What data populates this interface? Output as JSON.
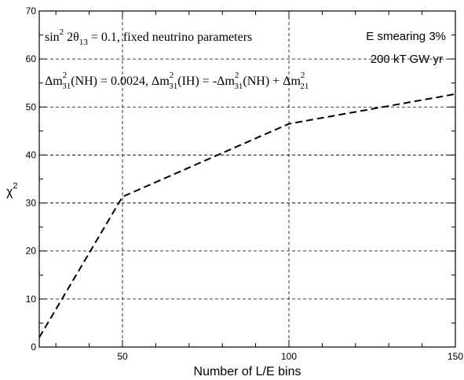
{
  "chart_data": {
    "type": "line",
    "title": "",
    "xlabel": "Number of L/E bins",
    "ylabel": "χ",
    "ylabel_sup": "2",
    "xlim": [
      25,
      150
    ],
    "ylim": [
      0,
      70
    ],
    "x_ticks": [
      50,
      100,
      150
    ],
    "y_ticks": [
      0,
      10,
      20,
      30,
      40,
      50,
      60,
      70
    ],
    "grid": true,
    "series": [
      {
        "style": "dashed",
        "x": [
          25,
          50,
          100,
          150
        ],
        "y": [
          2.0,
          31.3,
          46.5,
          52.7
        ]
      }
    ],
    "annotations": {
      "line1": {
        "p1": "sin",
        "p1_sup": "2",
        "p2": " 2θ",
        "p2_sub": "13",
        "p3": " = 0.1, fixed neutrino parameters"
      },
      "line2": {
        "a": "Δm",
        "a_sup": "2",
        "a_sub": "31",
        "b": "(NH) = 0.0024, Δm",
        "b_sup": "2",
        "b_sub": "31",
        "c": "(IH) = -Δm",
        "c_sup": "2",
        "c_sub": "31",
        "d": "(NH) + Δm",
        "d_sup": "2",
        "d_sub": "21"
      },
      "right1": "E smearing 3%",
      "right2": "200 kT GW yr"
    }
  }
}
